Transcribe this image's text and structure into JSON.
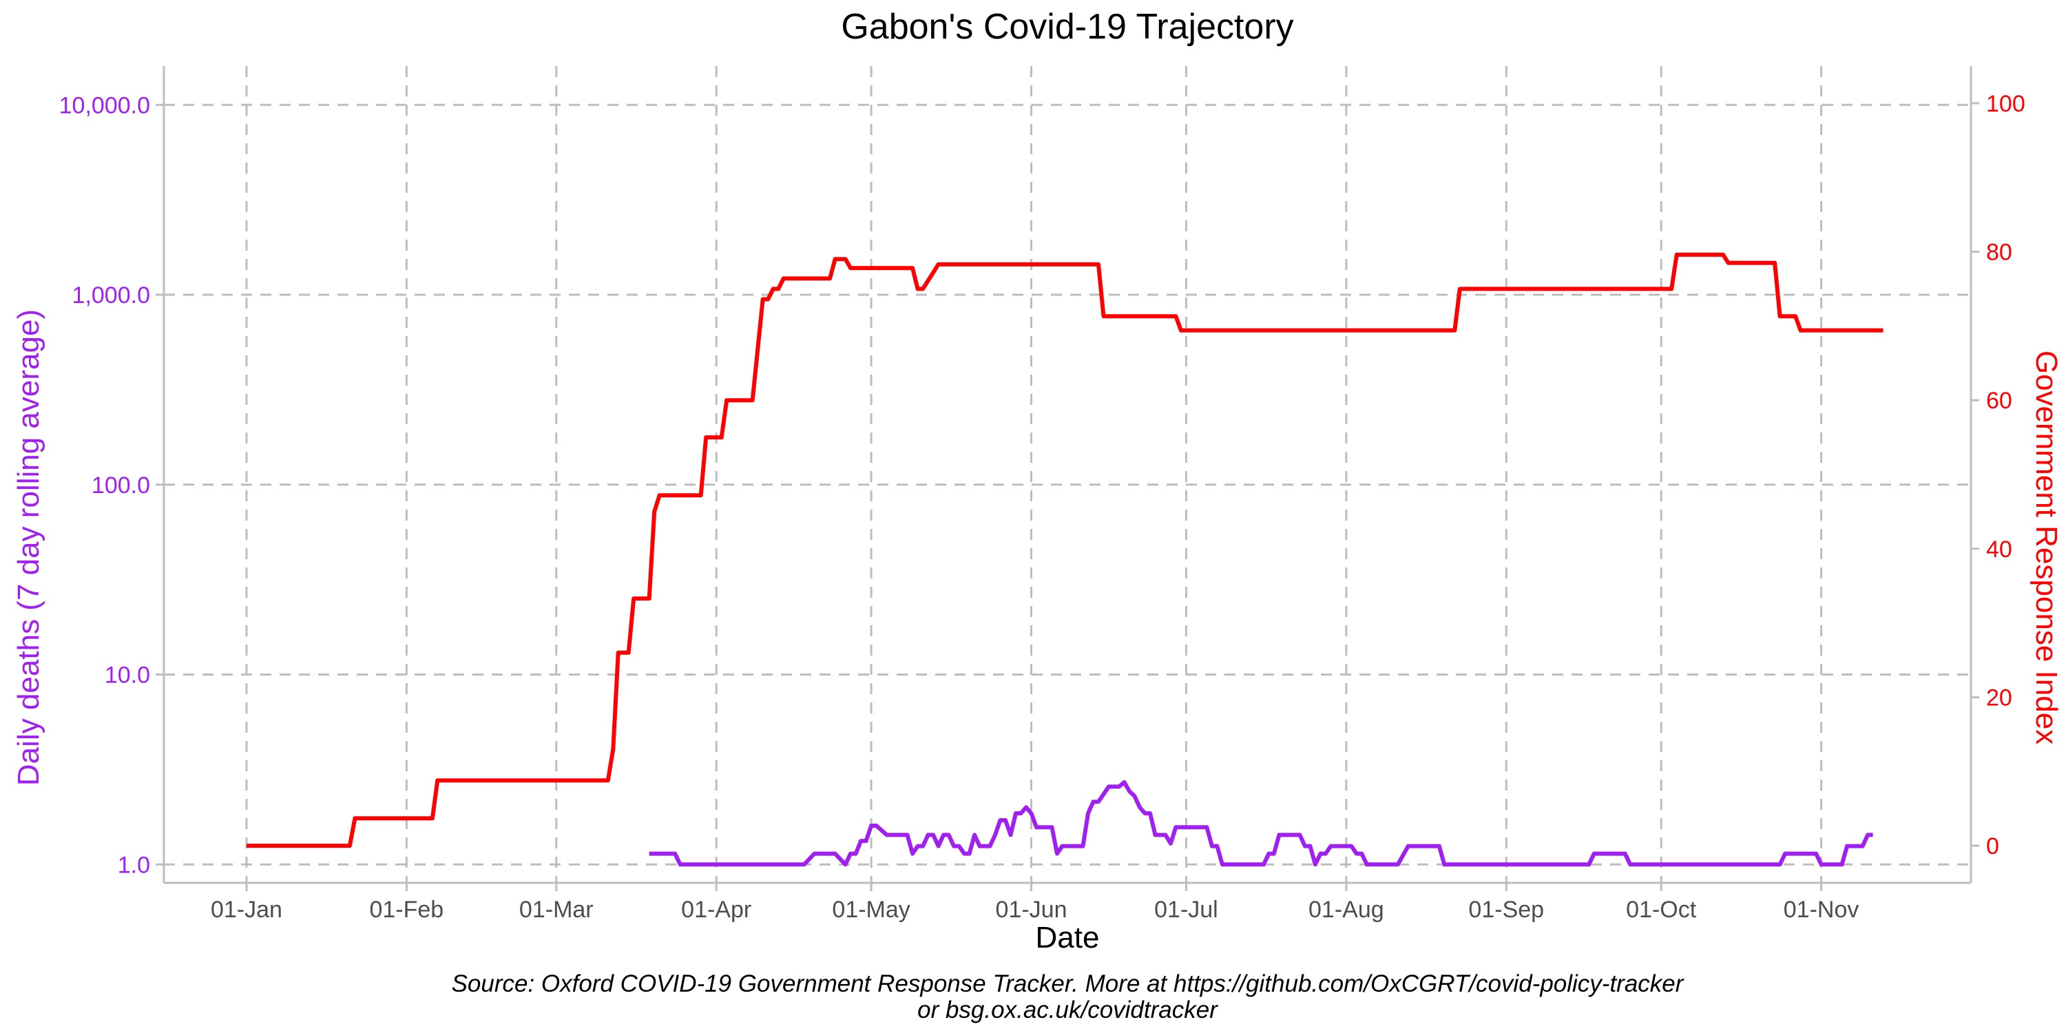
{
  "chart_data": {
    "type": "line",
    "title": "Gabon's Covid-19 Trajectory",
    "xlabel": "Date",
    "ylabel_left": "Daily deaths (7 day rolling average)",
    "ylabel_right": "Government Response Index",
    "caption_line1": "Source: Oxford COVID-19 Government Response Tracker. More at https://github.com/OxCGRT/covid-policy-tracker",
    "caption_line2": "or bsg.ox.ac.uk/covidtracker",
    "x_range": [
      "2019-12-16",
      "2020-11-30"
    ],
    "x_ticks": [
      {
        "date": "2020-01-01",
        "label": "01-Jan"
      },
      {
        "date": "2020-02-01",
        "label": "01-Feb"
      },
      {
        "date": "2020-03-01",
        "label": "01-Mar"
      },
      {
        "date": "2020-04-01",
        "label": "01-Apr"
      },
      {
        "date": "2020-05-01",
        "label": "01-May"
      },
      {
        "date": "2020-06-01",
        "label": "01-Jun"
      },
      {
        "date": "2020-07-01",
        "label": "01-Jul"
      },
      {
        "date": "2020-08-01",
        "label": "01-Aug"
      },
      {
        "date": "2020-09-01",
        "label": "01-Sep"
      },
      {
        "date": "2020-10-01",
        "label": "01-Oct"
      },
      {
        "date": "2020-11-01",
        "label": "01-Nov"
      }
    ],
    "y_left": {
      "scale": "log",
      "range": [
        0.8,
        16000
      ],
      "ticks": [
        {
          "value": 1,
          "label": "1.0"
        },
        {
          "value": 10,
          "label": "10.0"
        },
        {
          "value": 100,
          "label": "100.0"
        },
        {
          "value": 1000,
          "label": "1,000.0"
        },
        {
          "value": 10000,
          "label": "10,000.0"
        }
      ]
    },
    "y_right": {
      "scale": "linear",
      "range": [
        -5,
        105
      ],
      "ticks": [
        {
          "value": 0,
          "label": "0"
        },
        {
          "value": 20,
          "label": "20"
        },
        {
          "value": 40,
          "label": "40"
        },
        {
          "value": 60,
          "label": "60"
        },
        {
          "value": 80,
          "label": "80"
        },
        {
          "value": 100,
          "label": "100"
        }
      ]
    },
    "grid": true,
    "colors": {
      "deaths": "#a020f0",
      "response": "#ff0000",
      "grid": "#bdbdbd",
      "axis": "#bdbdbd"
    },
    "series": [
      {
        "axis": "right",
        "color": "#ff0000",
        "points": [
          [
            "2020-01-01",
            0
          ],
          [
            "2020-01-21",
            0
          ],
          [
            "2020-01-22",
            3.7
          ],
          [
            "2020-02-06",
            3.7
          ],
          [
            "2020-02-07",
            8.8
          ],
          [
            "2020-03-11",
            8.8
          ],
          [
            "2020-03-12",
            13
          ],
          [
            "2020-03-13",
            26
          ],
          [
            "2020-03-14",
            26
          ],
          [
            "2020-03-15",
            26
          ],
          [
            "2020-03-16",
            33.3
          ],
          [
            "2020-03-19",
            33.3
          ],
          [
            "2020-03-20",
            45
          ],
          [
            "2020-03-21",
            47.2
          ],
          [
            "2020-03-29",
            47.2
          ],
          [
            "2020-03-30",
            55
          ],
          [
            "2020-04-02",
            55
          ],
          [
            "2020-04-03",
            60
          ],
          [
            "2020-04-08",
            60
          ],
          [
            "2020-04-10",
            73.6
          ],
          [
            "2020-04-11",
            73.6
          ],
          [
            "2020-04-12",
            75
          ],
          [
            "2020-04-13",
            75
          ],
          [
            "2020-04-14",
            76.4
          ],
          [
            "2020-04-23",
            76.4
          ],
          [
            "2020-04-24",
            79
          ],
          [
            "2020-04-26",
            79
          ],
          [
            "2020-04-27",
            77.8
          ],
          [
            "2020-05-09",
            77.8
          ],
          [
            "2020-05-10",
            75
          ],
          [
            "2020-05-11",
            75
          ],
          [
            "2020-05-14",
            78.3
          ],
          [
            "2020-06-14",
            78.3
          ],
          [
            "2020-06-15",
            71.3
          ],
          [
            "2020-06-29",
            71.3
          ],
          [
            "2020-06-30",
            69.4
          ],
          [
            "2020-08-22",
            69.4
          ],
          [
            "2020-08-23",
            75
          ],
          [
            "2020-10-03",
            75
          ],
          [
            "2020-10-04",
            79.6
          ],
          [
            "2020-10-13",
            79.6
          ],
          [
            "2020-10-14",
            78.5
          ],
          [
            "2020-10-23",
            78.5
          ],
          [
            "2020-10-24",
            71.3
          ],
          [
            "2020-10-27",
            71.3
          ],
          [
            "2020-10-28",
            69.4
          ],
          [
            "2020-11-13",
            69.4
          ]
        ]
      },
      {
        "axis": "left",
        "color": "#a020f0",
        "points": [
          [
            "2020-03-19",
            1.14
          ],
          [
            "2020-03-24",
            1.14
          ],
          [
            "2020-03-25",
            1.0
          ],
          [
            "2020-04-18",
            1.0
          ],
          [
            "2020-04-20",
            1.14
          ],
          [
            "2020-04-24",
            1.14
          ],
          [
            "2020-04-26",
            1.0
          ],
          [
            "2020-04-27",
            1.14
          ],
          [
            "2020-04-28",
            1.14
          ],
          [
            "2020-04-29",
            1.33
          ],
          [
            "2020-04-30",
            1.33
          ],
          [
            "2020-05-01",
            1.6
          ],
          [
            "2020-05-02",
            1.6
          ],
          [
            "2020-05-04",
            1.43
          ],
          [
            "2020-05-08",
            1.43
          ],
          [
            "2020-05-09",
            1.14
          ],
          [
            "2020-05-10",
            1.25
          ],
          [
            "2020-05-11",
            1.25
          ],
          [
            "2020-05-12",
            1.43
          ],
          [
            "2020-05-13",
            1.43
          ],
          [
            "2020-05-14",
            1.25
          ],
          [
            "2020-05-15",
            1.43
          ],
          [
            "2020-05-16",
            1.43
          ],
          [
            "2020-05-17",
            1.25
          ],
          [
            "2020-05-18",
            1.25
          ],
          [
            "2020-05-19",
            1.14
          ],
          [
            "2020-05-20",
            1.14
          ],
          [
            "2020-05-21",
            1.43
          ],
          [
            "2020-05-22",
            1.25
          ],
          [
            "2020-05-24",
            1.25
          ],
          [
            "2020-05-25",
            1.43
          ],
          [
            "2020-05-26",
            1.71
          ],
          [
            "2020-05-27",
            1.71
          ],
          [
            "2020-05-28",
            1.43
          ],
          [
            "2020-05-29",
            1.86
          ],
          [
            "2020-05-30",
            1.86
          ],
          [
            "2020-05-31",
            2.0
          ],
          [
            "2020-06-01",
            1.86
          ],
          [
            "2020-06-02",
            1.57
          ],
          [
            "2020-06-05",
            1.57
          ],
          [
            "2020-06-06",
            1.14
          ],
          [
            "2020-06-07",
            1.25
          ],
          [
            "2020-06-11",
            1.25
          ],
          [
            "2020-06-12",
            1.86
          ],
          [
            "2020-06-13",
            2.14
          ],
          [
            "2020-06-14",
            2.14
          ],
          [
            "2020-06-16",
            2.57
          ],
          [
            "2020-06-18",
            2.57
          ],
          [
            "2020-06-19",
            2.71
          ],
          [
            "2020-06-20",
            2.43
          ],
          [
            "2020-06-21",
            2.29
          ],
          [
            "2020-06-22",
            2.0
          ],
          [
            "2020-06-23",
            1.86
          ],
          [
            "2020-06-24",
            1.86
          ],
          [
            "2020-06-25",
            1.43
          ],
          [
            "2020-06-27",
            1.43
          ],
          [
            "2020-06-28",
            1.29
          ],
          [
            "2020-06-29",
            1.57
          ],
          [
            "2020-07-05",
            1.57
          ],
          [
            "2020-07-06",
            1.25
          ],
          [
            "2020-07-07",
            1.25
          ],
          [
            "2020-07-08",
            1.0
          ],
          [
            "2020-07-16",
            1.0
          ],
          [
            "2020-07-17",
            1.14
          ],
          [
            "2020-07-18",
            1.14
          ],
          [
            "2020-07-19",
            1.43
          ],
          [
            "2020-07-23",
            1.43
          ],
          [
            "2020-07-24",
            1.25
          ],
          [
            "2020-07-25",
            1.25
          ],
          [
            "2020-07-26",
            1.0
          ],
          [
            "2020-07-27",
            1.14
          ],
          [
            "2020-07-28",
            1.14
          ],
          [
            "2020-07-29",
            1.25
          ],
          [
            "2020-08-02",
            1.25
          ],
          [
            "2020-08-03",
            1.14
          ],
          [
            "2020-08-04",
            1.14
          ],
          [
            "2020-08-05",
            1.0
          ],
          [
            "2020-08-11",
            1.0
          ],
          [
            "2020-08-13",
            1.25
          ],
          [
            "2020-08-19",
            1.25
          ],
          [
            "2020-08-20",
            1.0
          ],
          [
            "2020-09-17",
            1.0
          ],
          [
            "2020-09-18",
            1.14
          ],
          [
            "2020-09-24",
            1.14
          ],
          [
            "2020-09-25",
            1.0
          ],
          [
            "2020-10-24",
            1.0
          ],
          [
            "2020-10-25",
            1.14
          ],
          [
            "2020-10-31",
            1.14
          ],
          [
            "2020-11-01",
            1.0
          ],
          [
            "2020-11-05",
            1.0
          ],
          [
            "2020-11-06",
            1.25
          ],
          [
            "2020-11-09",
            1.25
          ],
          [
            "2020-11-10",
            1.43
          ],
          [
            "2020-11-11",
            1.43
          ]
        ]
      }
    ]
  }
}
